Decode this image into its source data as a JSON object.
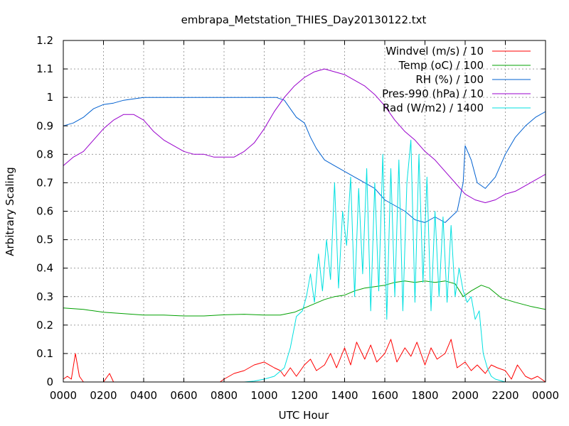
{
  "chart_data": {
    "type": "line",
    "title": "embrapa_Metstation_THIES_Day20130122.txt",
    "xlabel": "UTC Hour",
    "ylabel": "Arbitrary Scaling",
    "xlim": [
      0,
      24
    ],
    "ylim": [
      0,
      1.2
    ],
    "grid": true,
    "legend_position": "top-right",
    "x_ticks": [
      {
        "value": 0,
        "label": "0000"
      },
      {
        "value": 2,
        "label": "0200"
      },
      {
        "value": 4,
        "label": "0400"
      },
      {
        "value": 6,
        "label": "0600"
      },
      {
        "value": 8,
        "label": "0800"
      },
      {
        "value": 10,
        "label": "1000"
      },
      {
        "value": 12,
        "label": "1200"
      },
      {
        "value": 14,
        "label": "1400"
      },
      {
        "value": 16,
        "label": "1600"
      },
      {
        "value": 18,
        "label": "1800"
      },
      {
        "value": 20,
        "label": "2000"
      },
      {
        "value": 22,
        "label": "2200"
      },
      {
        "value": 24,
        "label": "0000"
      }
    ],
    "y_ticks": [
      {
        "value": 0,
        "label": "0"
      },
      {
        "value": 0.1,
        "label": "0.1"
      },
      {
        "value": 0.2,
        "label": "0.2"
      },
      {
        "value": 0.3,
        "label": "0.3"
      },
      {
        "value": 0.4,
        "label": "0.4"
      },
      {
        "value": 0.5,
        "label": "0.5"
      },
      {
        "value": 0.6,
        "label": "0.6"
      },
      {
        "value": 0.7,
        "label": "0.7"
      },
      {
        "value": 0.8,
        "label": "0.8"
      },
      {
        "value": 0.9,
        "label": "0.9"
      },
      {
        "value": 1.0,
        "label": "1"
      },
      {
        "value": 1.1,
        "label": "1.1"
      },
      {
        "value": 1.2,
        "label": "1.2"
      }
    ],
    "series": [
      {
        "name": "Windvel (m/s) / 10",
        "color": "#ff0000",
        "x": [
          0,
          0.2,
          0.4,
          0.6,
          0.8,
          1.0,
          1.2,
          1.6,
          2.0,
          2.3,
          2.5,
          3,
          4,
          5,
          6,
          7,
          7.8,
          8.0,
          8.5,
          9,
          9.5,
          10,
          10.5,
          10.8,
          11,
          11.3,
          11.6,
          12,
          12.3,
          12.6,
          13,
          13.3,
          13.6,
          14,
          14.3,
          14.6,
          15,
          15.3,
          15.6,
          16,
          16.3,
          16.6,
          17,
          17.3,
          17.6,
          18,
          18.3,
          18.6,
          19,
          19.3,
          19.6,
          20,
          20.3,
          20.6,
          21,
          21.3,
          21.6,
          22,
          22.3,
          22.6,
          23,
          23.3,
          23.6,
          24
        ],
        "y": [
          0.01,
          0.02,
          0.01,
          0.1,
          0.02,
          0.0,
          0.0,
          0.0,
          0.0,
          0.03,
          0.0,
          0.0,
          0.0,
          0.0,
          0.0,
          0.0,
          0.0,
          0.01,
          0.03,
          0.04,
          0.06,
          0.07,
          0.05,
          0.04,
          0.02,
          0.05,
          0.02,
          0.06,
          0.08,
          0.04,
          0.06,
          0.1,
          0.05,
          0.12,
          0.06,
          0.14,
          0.08,
          0.13,
          0.07,
          0.1,
          0.15,
          0.07,
          0.12,
          0.09,
          0.14,
          0.06,
          0.12,
          0.08,
          0.1,
          0.15,
          0.05,
          0.07,
          0.04,
          0.06,
          0.03,
          0.06,
          0.05,
          0.04,
          0.01,
          0.06,
          0.02,
          0.01,
          0.02,
          0.0
        ]
      },
      {
        "name": "Temp (oC) / 100",
        "color": "#00a000",
        "x": [
          0,
          1,
          2,
          3,
          4,
          5,
          6,
          7,
          8,
          9,
          10,
          10.8,
          11.5,
          12,
          12.5,
          13,
          13.5,
          14,
          14.5,
          15,
          15.5,
          16,
          16.5,
          17,
          17.5,
          18,
          18.5,
          19,
          19.5,
          19.9,
          20.3,
          20.8,
          21.2,
          21.8,
          22.5,
          23.3,
          24
        ],
        "y": [
          0.26,
          0.255,
          0.245,
          0.24,
          0.235,
          0.235,
          0.232,
          0.232,
          0.236,
          0.238,
          0.235,
          0.235,
          0.245,
          0.26,
          0.275,
          0.29,
          0.3,
          0.305,
          0.32,
          0.33,
          0.335,
          0.34,
          0.35,
          0.355,
          0.35,
          0.355,
          0.35,
          0.355,
          0.345,
          0.3,
          0.32,
          0.34,
          0.33,
          0.295,
          0.28,
          0.265,
          0.255
        ]
      },
      {
        "name": "RH (%) / 100",
        "color": "#0060d0",
        "x": [
          0,
          0.5,
          1.0,
          1.5,
          2.0,
          2.5,
          3.0,
          3.5,
          4.0,
          5,
          6,
          7,
          8,
          9,
          10,
          10.6,
          11,
          11.3,
          11.6,
          12,
          12.3,
          12.6,
          13,
          13.5,
          14,
          14.5,
          15,
          15.5,
          16,
          16.5,
          17,
          17.5,
          18,
          18.5,
          19,
          19.3,
          19.6,
          19.9,
          20.0,
          20.3,
          20.6,
          21.0,
          21.5,
          22,
          22.5,
          23,
          23.5,
          24
        ],
        "y": [
          0.9,
          0.91,
          0.93,
          0.96,
          0.975,
          0.98,
          0.99,
          0.995,
          1.0,
          1.0,
          1.0,
          1.0,
          1.0,
          1.0,
          1.0,
          1.0,
          0.99,
          0.96,
          0.93,
          0.91,
          0.86,
          0.82,
          0.78,
          0.76,
          0.74,
          0.72,
          0.7,
          0.68,
          0.64,
          0.62,
          0.6,
          0.57,
          0.56,
          0.58,
          0.56,
          0.58,
          0.6,
          0.7,
          0.83,
          0.78,
          0.7,
          0.68,
          0.72,
          0.8,
          0.86,
          0.9,
          0.93,
          0.95
        ]
      },
      {
        "name": "Pres-990 (hPa) / 10",
        "color": "#9900cc",
        "x": [
          0,
          0.5,
          1.0,
          1.5,
          2.0,
          2.5,
          3.0,
          3.5,
          4.0,
          4.5,
          5.0,
          5.5,
          6.0,
          6.5,
          7.0,
          7.5,
          8.0,
          8.5,
          9.0,
          9.5,
          10.0,
          10.5,
          11.0,
          11.5,
          12.0,
          12.5,
          13.0,
          13.5,
          14.0,
          14.5,
          15.0,
          15.5,
          16.0,
          16.5,
          17.0,
          17.5,
          18.0,
          18.5,
          19.0,
          19.5,
          20.0,
          20.5,
          21.0,
          21.5,
          22.0,
          22.5,
          23.0,
          23.5,
          24.0
        ],
        "y": [
          0.76,
          0.79,
          0.81,
          0.85,
          0.89,
          0.92,
          0.94,
          0.94,
          0.92,
          0.88,
          0.85,
          0.83,
          0.81,
          0.8,
          0.8,
          0.79,
          0.79,
          0.79,
          0.81,
          0.84,
          0.89,
          0.95,
          1.0,
          1.04,
          1.07,
          1.09,
          1.1,
          1.09,
          1.08,
          1.06,
          1.04,
          1.01,
          0.97,
          0.92,
          0.88,
          0.85,
          0.81,
          0.78,
          0.74,
          0.7,
          0.66,
          0.64,
          0.63,
          0.64,
          0.66,
          0.67,
          0.69,
          0.71,
          0.73
        ]
      },
      {
        "name": "Rad (W/m2) / 1400",
        "color": "#00e0e0",
        "x": [
          0,
          2,
          4,
          6,
          8,
          9,
          9.5,
          10,
          10.5,
          11,
          11.3,
          11.6,
          11.9,
          12.1,
          12.3,
          12.5,
          12.7,
          12.9,
          13.1,
          13.3,
          13.5,
          13.7,
          13.9,
          14.1,
          14.3,
          14.5,
          14.7,
          14.9,
          15.1,
          15.3,
          15.5,
          15.7,
          15.9,
          16.1,
          16.3,
          16.5,
          16.7,
          16.9,
          17.1,
          17.3,
          17.5,
          17.7,
          17.9,
          18.1,
          18.3,
          18.5,
          18.7,
          18.9,
          19.1,
          19.3,
          19.5,
          19.7,
          19.9,
          20.1,
          20.3,
          20.5,
          20.7,
          20.9,
          21.1,
          21.3,
          21.5,
          22,
          23,
          24
        ],
        "y": [
          0.0,
          0.0,
          0.0,
          0.0,
          0.0,
          0.0,
          0.003,
          0.01,
          0.02,
          0.05,
          0.12,
          0.23,
          0.25,
          0.3,
          0.38,
          0.28,
          0.45,
          0.32,
          0.5,
          0.36,
          0.7,
          0.33,
          0.6,
          0.48,
          0.72,
          0.3,
          0.68,
          0.38,
          0.75,
          0.25,
          0.7,
          0.32,
          0.8,
          0.22,
          0.75,
          0.3,
          0.78,
          0.25,
          0.7,
          0.85,
          0.28,
          0.8,
          0.35,
          0.72,
          0.25,
          0.6,
          0.3,
          0.58,
          0.28,
          0.55,
          0.3,
          0.4,
          0.32,
          0.28,
          0.3,
          0.22,
          0.25,
          0.1,
          0.05,
          0.02,
          0.01,
          0.0,
          0.0,
          0.0
        ]
      }
    ]
  }
}
